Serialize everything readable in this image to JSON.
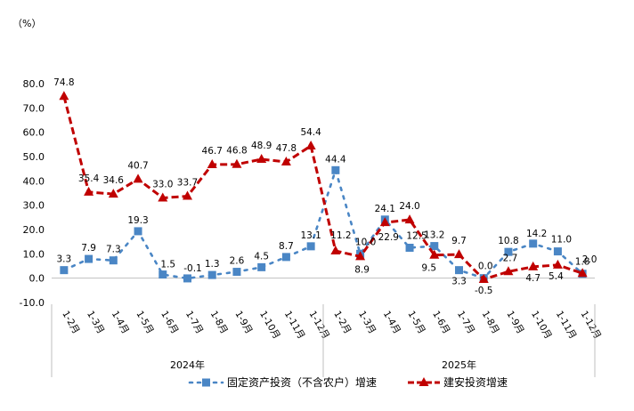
{
  "chart_data": {
    "type": "line",
    "unit_label": "（%）",
    "ylim": [
      -10,
      80
    ],
    "yticks": [
      "80.0",
      "70.0",
      "60.0",
      "50.0",
      "40.0",
      "30.0",
      "20.0",
      "10.0",
      "0.0",
      "-10.0"
    ],
    "categories": [
      "1-2月",
      "1-3月",
      "1-4月",
      "1-5月",
      "1-6月",
      "1-7月",
      "1-8月",
      "1-9月",
      "1-10月",
      "1-11月",
      "1-12月",
      "1-2月",
      "1-3月",
      "1-4月",
      "1-5月",
      "1-6月",
      "1-7月",
      "1-8月",
      "1-9月",
      "1-10月",
      "1-11月",
      "1-12月"
    ],
    "groups": [
      {
        "label": "2024年",
        "start": 0,
        "end": 10
      },
      {
        "label": "2025年",
        "start": 11,
        "end": 21
      }
    ],
    "series": [
      {
        "name": "固定资产投资（不含农户）增速",
        "color": "#4a86c5",
        "values": [
          3.3,
          7.9,
          7.3,
          19.3,
          1.5,
          -0.1,
          1.3,
          2.6,
          4.5,
          8.7,
          13.1,
          44.4,
          10.0,
          24.1,
          12.5,
          13.2,
          3.3,
          0.0,
          10.8,
          14.2,
          11.0,
          1.8
        ],
        "labels": [
          "3.3",
          "7.9",
          "7.3",
          "19.3",
          "1.5",
          "-0.1",
          "1.3",
          "2.6",
          "4.5",
          "8.7",
          "13.1",
          "44.4",
          "10.0",
          "24.1",
          "12.5",
          "13.2",
          "3.3",
          "0.0",
          "10.8",
          "14.2",
          "11.0",
          "1.8"
        ]
      },
      {
        "name": "建安投资增速",
        "color": "#c00000",
        "values": [
          74.8,
          35.4,
          34.6,
          40.7,
          33.0,
          33.7,
          46.7,
          46.8,
          48.9,
          47.8,
          54.4,
          11.2,
          8.9,
          22.9,
          24.0,
          9.5,
          9.7,
          -0.5,
          2.7,
          4.7,
          5.4,
          2.0
        ],
        "labels": [
          "74.8",
          "35.4",
          "34.6",
          "40.7",
          "33.0",
          "33.7",
          "46.7",
          "46.8",
          "48.9",
          "47.8",
          "54.4",
          "11.2",
          "8.9",
          "22.9",
          "24.0",
          "9.5",
          "9.7",
          "-0.5",
          "2.7",
          "4.7",
          "5.4",
          "2.0"
        ]
      }
    ]
  }
}
